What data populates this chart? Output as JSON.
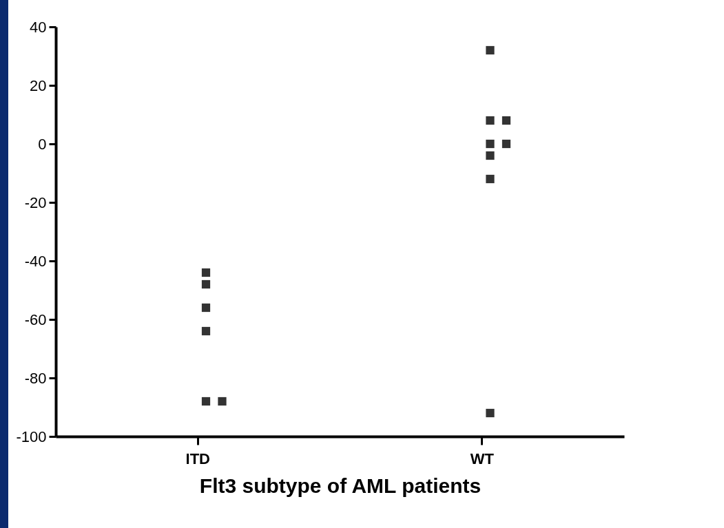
{
  "chart_data": {
    "type": "scatter",
    "xlabel": "Flt3 subtype of AML patients",
    "categories": [
      "ITD",
      "WT"
    ],
    "series": [
      {
        "color": "#333333",
        "x": [
          "ITD",
          "ITD",
          "ITD",
          "ITD",
          "ITD",
          "ITD",
          "WT",
          "WT",
          "WT",
          "WT",
          "WT",
          "WT",
          "WT",
          "WT"
        ],
        "values": [
          -44,
          -48,
          -56,
          -64,
          -88,
          -88,
          32,
          8,
          8,
          0,
          0,
          -4,
          -12,
          -92
        ]
      }
    ],
    "ylim": [
      -100,
      40
    ],
    "yticks": [
      -100,
      -80,
      -60,
      -40,
      -20,
      0,
      20,
      40
    ],
    "grid": false,
    "legend": false,
    "marker": "square"
  }
}
